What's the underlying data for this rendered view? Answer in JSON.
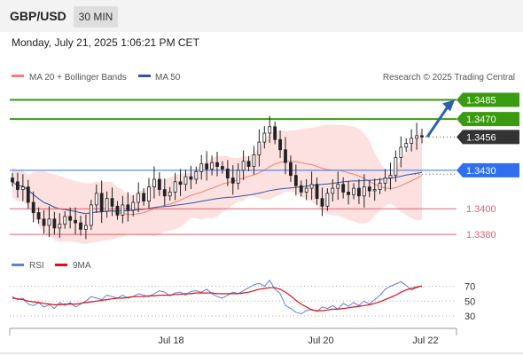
{
  "header": {
    "symbol": "GBP/USD",
    "timeframe": "30 MIN"
  },
  "timestamp": "Monday, July 21, 2025 1:06:21 PM CET",
  "credit": "Research © 2025 Trading Central",
  "colors": {
    "bollinger_fill": "#fde0e0",
    "ma20": "#f08070",
    "ma50": "#2c5aa0",
    "candle": "#222222",
    "resistance": "#3a9a10",
    "support": "#e06070",
    "pivot": "#3070f0",
    "rsi": "#5a80e0",
    "rsi_ma": "#e01010",
    "arrow": "#2a60b0"
  },
  "chart_data": [
    {
      "type": "candlestick",
      "legend": [
        {
          "name": "MA 20 + Bollinger Bands",
          "color": "#f08070"
        },
        {
          "name": "MA 50",
          "color": "#2c5aa0"
        }
      ],
      "price_levels": [
        {
          "value": 1.3485,
          "label": "1.3485",
          "kind": "resistance"
        },
        {
          "value": 1.347,
          "label": "1.3470",
          "kind": "resistance"
        },
        {
          "value": 1.3456,
          "label": "1.3456",
          "kind": "last"
        },
        {
          "value": 1.343,
          "label": "1.3430",
          "kind": "pivot"
        },
        {
          "value": 1.34,
          "label": "1.3400",
          "kind": "support"
        },
        {
          "value": 1.338,
          "label": "1.3380",
          "kind": "support"
        }
      ],
      "ylim": [
        1.3369,
        1.3495
      ],
      "x_ticks": [
        "Jul 18",
        "Jul 20",
        "Jul 22"
      ],
      "close": [
        1.3421,
        1.3415,
        1.3417,
        1.3405,
        1.3397,
        1.3392,
        1.3387,
        1.3392,
        1.3385,
        1.3388,
        1.3394,
        1.3391,
        1.3389,
        1.3384,
        1.3387,
        1.3403,
        1.3412,
        1.3398,
        1.3408,
        1.3402,
        1.3395,
        1.3403,
        1.3399,
        1.3405,
        1.3412,
        1.3406,
        1.3417,
        1.3423,
        1.3415,
        1.341,
        1.3413,
        1.3421,
        1.3419,
        1.3425,
        1.3423,
        1.3429,
        1.3435,
        1.3431,
        1.3436,
        1.3433,
        1.3431,
        1.3424,
        1.342,
        1.343,
        1.3437,
        1.3433,
        1.3442,
        1.3452,
        1.3459,
        1.3464,
        1.3454,
        1.3446,
        1.3436,
        1.3426,
        1.3418,
        1.3413,
        1.3416,
        1.3419,
        1.3408,
        1.3402,
        1.3412,
        1.3416,
        1.3419,
        1.3413,
        1.3411,
        1.3416,
        1.341,
        1.3417,
        1.3414,
        1.3415,
        1.342,
        1.3424,
        1.3426,
        1.344,
        1.3448,
        1.3451,
        1.3455,
        1.3457,
        1.3456
      ]
    },
    {
      "type": "line",
      "legend": [
        {
          "name": "RSI",
          "color": "#5a80e0"
        },
        {
          "name": "9MA",
          "color": "#e01010"
        }
      ],
      "ylim": [
        18,
        85
      ],
      "y_ticks": [
        70,
        50,
        30
      ],
      "rsi": [
        56,
        52,
        54,
        46,
        44,
        48,
        42,
        45,
        40,
        48,
        44,
        48,
        42,
        46,
        50,
        56,
        54,
        52,
        58,
        56,
        54,
        58,
        54,
        56,
        60,
        58,
        56,
        60,
        64,
        62,
        57,
        61,
        62,
        58,
        63,
        64,
        62,
        66,
        60,
        56,
        54,
        58,
        62,
        60,
        64,
        68,
        72,
        74,
        70,
        78,
        66,
        60,
        44,
        40,
        35,
        33,
        37,
        39,
        36,
        42,
        40,
        44,
        39,
        47,
        43,
        48,
        44,
        50,
        46,
        52,
        58,
        66,
        70,
        73,
        76,
        71,
        65,
        68,
        71
      ],
      "rsi_ma": [
        54,
        53,
        52,
        50,
        49,
        48,
        47,
        46,
        45,
        45,
        46,
        46,
        46,
        47,
        48,
        49,
        50,
        51,
        52,
        53,
        54,
        54,
        55,
        56,
        56,
        56,
        57,
        57,
        58,
        58,
        58,
        59,
        59,
        60,
        60,
        61,
        61,
        61,
        61,
        60,
        60,
        60,
        60,
        60,
        61,
        62,
        64,
        66,
        67,
        68,
        68,
        66,
        62,
        57,
        51,
        46,
        42,
        38,
        37,
        37,
        38,
        39,
        39,
        40,
        41,
        42,
        43,
        44,
        45,
        47,
        49,
        52,
        55,
        58,
        62,
        65,
        67,
        69,
        70
      ]
    }
  ]
}
